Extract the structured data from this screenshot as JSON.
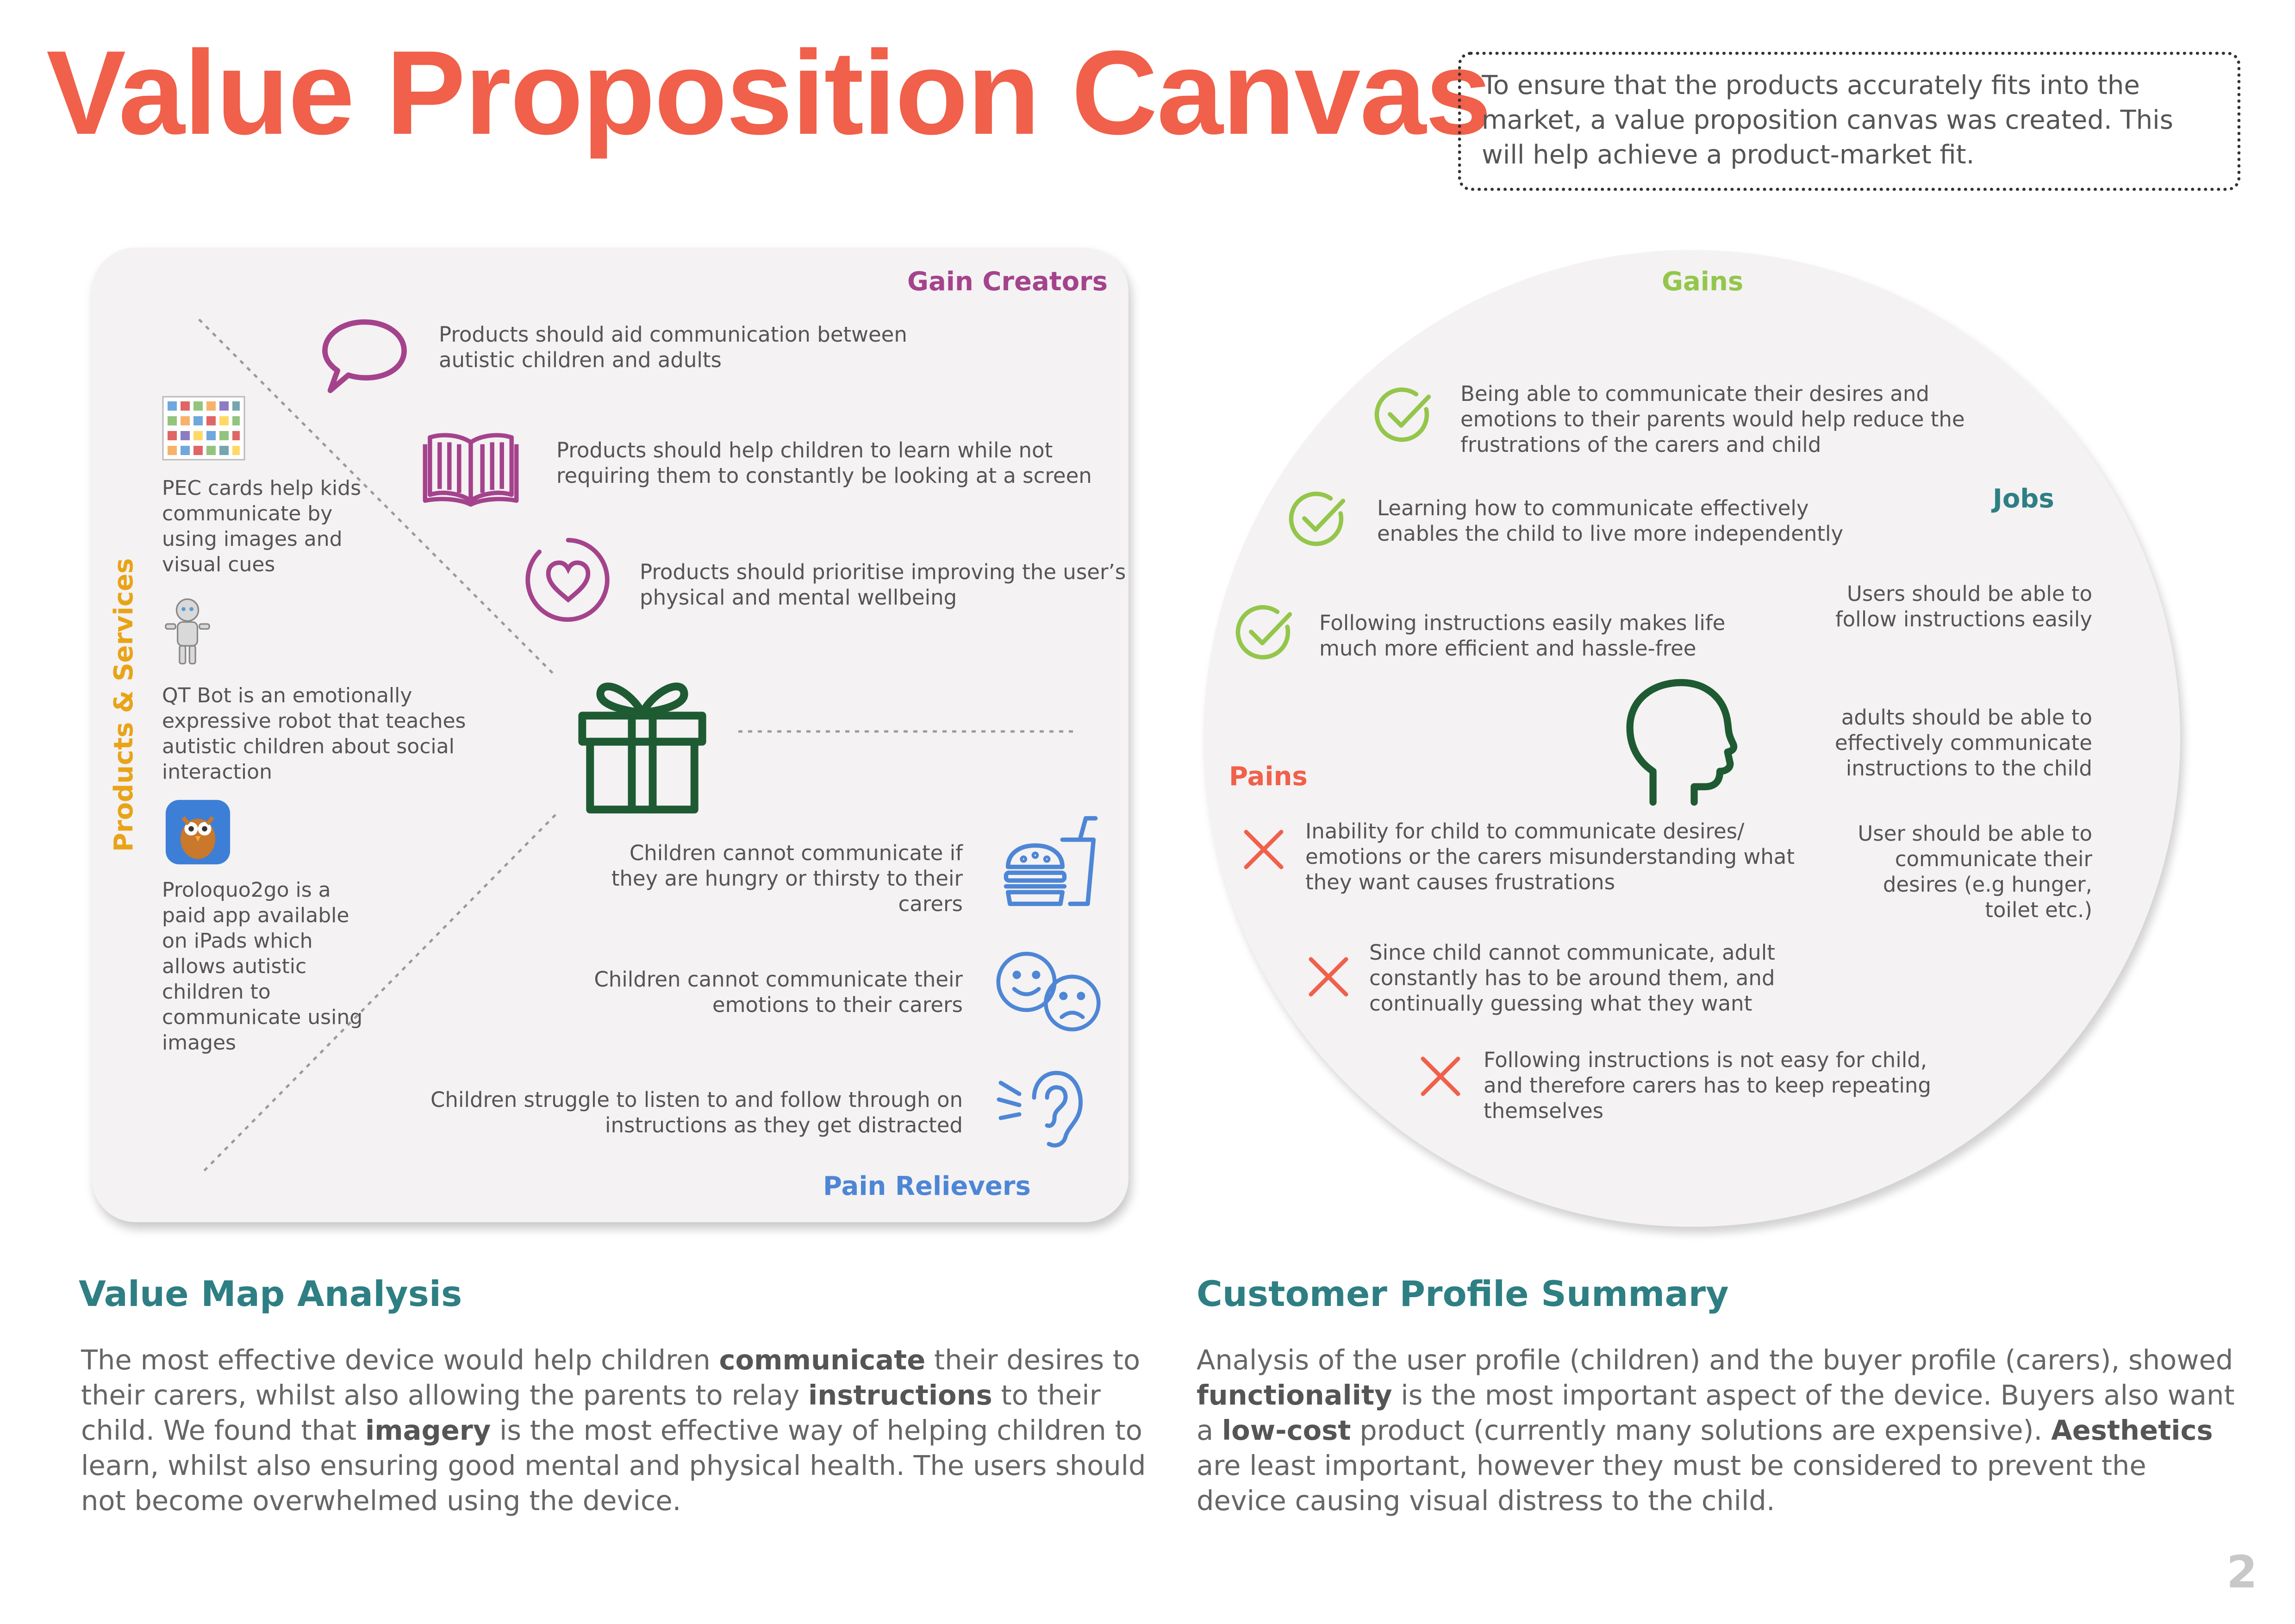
{
  "header": {
    "title": "Value Proposition Canvas",
    "intro": "To ensure that the products accurately fits into the market, a value proposition canvas was created. This will help achieve a product-market fit."
  },
  "value_map": {
    "gain_creators": {
      "title": "Gain Creators",
      "items": [
        {
          "icon": "speech-bubble-icon",
          "text": "Products should aid communication between autistic children and adults"
        },
        {
          "icon": "open-book-icon",
          "text": "Products should help children to learn while not requiring them to constantly be looking at a screen"
        },
        {
          "icon": "heart-circle-icon",
          "text": "Products should prioritise improving the user’s physical and mental wellbeing"
        }
      ]
    },
    "products_services": {
      "title": "Products & Services",
      "items": [
        {
          "icon": "pec-cards-image",
          "text": "PEC cards help kids communicate by using images and visual cues"
        },
        {
          "icon": "qt-bot-image",
          "text": "QT Bot is an emotionally expressive robot that teaches autistic children about social interaction"
        },
        {
          "icon": "proloquo2go-app-icon",
          "text": "Proloquo2go is a paid app available on iPads which allows autistic children to communicate using images"
        }
      ]
    },
    "pain_relievers": {
      "title": "Pain Relievers",
      "items": [
        {
          "icon": "food-drink-icon",
          "text": "Children cannot communicate if they are hungry or thirsty to their carers"
        },
        {
          "icon": "emotion-faces-icon",
          "text": "Children cannot communicate their emotions to their carers"
        },
        {
          "icon": "ear-listening-icon",
          "text": "Children struggle to listen to and follow through on instructions as they get distracted"
        }
      ]
    },
    "center_icon": "gift-icon"
  },
  "customer_profile": {
    "gains": {
      "title": "Gains",
      "items": [
        {
          "icon": "check-icon",
          "text": "Being able to communicate their desires and emotions to their parents would help reduce the frustrations of the carers and child"
        },
        {
          "icon": "check-icon",
          "text": "Learning how to communicate effectively enables the child to live more independently"
        },
        {
          "icon": "check-icon",
          "text": "Following instructions easily makes life much more efficient and hassle-free"
        }
      ]
    },
    "jobs": {
      "title": "Jobs",
      "items": [
        {
          "text": "Users should be able to follow instructions easily"
        },
        {
          "text": "adults should be able to effectively communicate instructions to the child"
        },
        {
          "text": "User should be able to communicate their desires (e.g  hunger, toilet etc.)"
        }
      ]
    },
    "pains": {
      "title": "Pains",
      "items": [
        {
          "icon": "cross-icon",
          "text": "Inability for child to communicate desires/ emotions or the carers misunderstanding what they want causes frustrations"
        },
        {
          "icon": "cross-icon",
          "text": "Since child cannot communicate, adult constantly has to be around them, and continually guessing what they want"
        },
        {
          "icon": "cross-icon",
          "text": "Following instructions is not easy for child, and therefore carers has to keep repeating themselves"
        }
      ]
    },
    "center_icon": "head-profile-icon"
  },
  "analysis": {
    "value_map": {
      "title": "Value Map Analysis",
      "parts": [
        {
          "t": "The most effective device would help children "
        },
        {
          "b": "communicate"
        },
        {
          "t": " their desires to their carers, whilst also allowing the parents to relay "
        },
        {
          "b": "instructions"
        },
        {
          "t": " to their child. We found that "
        },
        {
          "b": "imagery"
        },
        {
          "t": " is the most effective way of helping children to learn, whilst also ensuring good mental and physical health. The users should not become overwhelmed using the device."
        }
      ]
    },
    "customer_profile": {
      "title": "Customer Profile Summary",
      "parts": [
        {
          "t": "Analysis of the user profile (children) and the buyer profile (carers), showed "
        },
        {
          "b": "functionality"
        },
        {
          "t": " is the most important aspect of the device. Buyers also want a "
        },
        {
          "b": "low-cost"
        },
        {
          "t": " product (currently many solutions are expensive). "
        },
        {
          "b": "Aesthetics"
        },
        {
          "t": " are least important, however they must be considered to prevent the device causing visual distress to the child."
        }
      ]
    }
  },
  "page_number": "2",
  "colors": {
    "title": "#F0604A",
    "gain_creators": "#A4438C",
    "products_services": "#E8A317",
    "pain_relievers": "#4E86D6",
    "gains": "#93C64A",
    "jobs": "#2E7F83",
    "pains": "#F0604A",
    "gift": "#1E5A32",
    "section_heading": "#2E7F83"
  }
}
